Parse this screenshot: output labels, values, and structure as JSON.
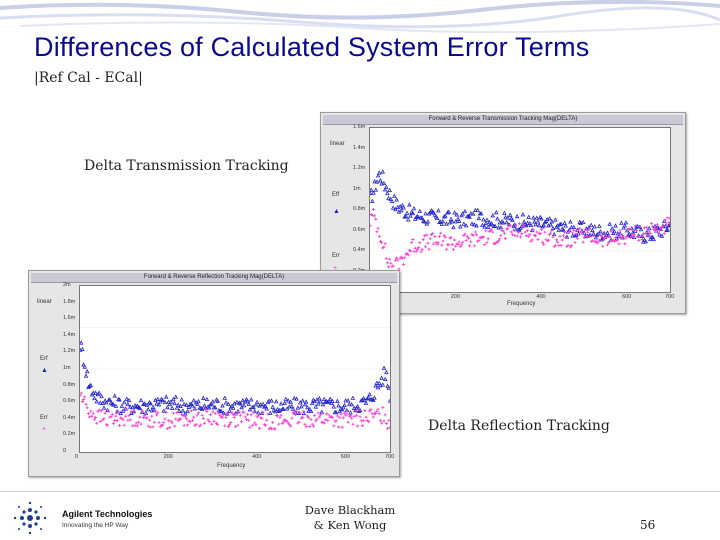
{
  "slide": {
    "title": "Differences of Calculated System Error Terms",
    "subtitle": "|Ref Cal - ECal|",
    "caption_transmission": "Delta Transmission Tracking",
    "caption_reflection": "Delta Reflection Tracking",
    "author_line1": "Dave Blackham",
    "author_line2": "& Ken Wong",
    "page_number": "56",
    "logo_name": "Agilent Technologies",
    "logo_tagline": "Innovating the HP Way",
    "colors": {
      "title": "#0a0a8c",
      "series_forward": "#2020d0",
      "series_reverse": "#ff33cc"
    }
  },
  "chart_data": [
    {
      "type": "scatter",
      "window_title": "Forward & Reverse Transmission Tracking Mag(DELTA)",
      "scale_label": "linear",
      "xlabel": "Frequency",
      "x_ticks": [
        "0",
        "200",
        "400",
        "600",
        "700"
      ],
      "y_ticks": [
        "1.6m",
        "1.4m",
        "1.2m",
        "1m",
        "0.8m",
        "0.6m",
        "0.4m",
        "0.2m",
        "0"
      ],
      "xlim": [
        0,
        700
      ],
      "ylim": [
        0,
        1.6
      ],
      "series": [
        {
          "name": "Eff",
          "marker": "triangle",
          "x": [
            0,
            10,
            20,
            30,
            40,
            60,
            80,
            100,
            150,
            200,
            250,
            300,
            350,
            400,
            450,
            500,
            550,
            600,
            650,
            700
          ],
          "y": [
            0.9,
            1.0,
            1.15,
            1.1,
            1.0,
            0.85,
            0.8,
            0.75,
            0.72,
            0.7,
            0.72,
            0.7,
            0.68,
            0.66,
            0.62,
            0.6,
            0.58,
            0.6,
            0.55,
            0.65
          ]
        },
        {
          "name": "Err",
          "marker": "cross",
          "x": [
            0,
            10,
            20,
            30,
            40,
            60,
            80,
            100,
            150,
            200,
            250,
            300,
            350,
            400,
            450,
            500,
            550,
            600,
            650,
            700
          ],
          "y": [
            0.7,
            0.75,
            0.6,
            0.5,
            0.3,
            0.25,
            0.35,
            0.45,
            0.5,
            0.48,
            0.52,
            0.55,
            0.6,
            0.55,
            0.5,
            0.55,
            0.5,
            0.55,
            0.6,
            0.65
          ]
        }
      ]
    },
    {
      "type": "scatter",
      "window_title": "Forward & Reverse Reflection Tracking Mag(DELTA)",
      "scale_label": "linear",
      "xlabel": "Frequency",
      "x_ticks": [
        "0",
        "200",
        "400",
        "600",
        "700"
      ],
      "y_ticks": [
        "2m",
        "1.8m",
        "1.6m",
        "1.4m",
        "1.2m",
        "1m",
        "0.8m",
        "0.6m",
        "0.4m",
        "0.2m",
        "0"
      ],
      "xlim": [
        0,
        700
      ],
      "ylim": [
        0,
        2
      ],
      "series": [
        {
          "name": "Erf",
          "marker": "triangle",
          "x": [
            0,
            10,
            20,
            40,
            60,
            80,
            100,
            150,
            200,
            250,
            300,
            350,
            400,
            450,
            500,
            550,
            600,
            650,
            690,
            700
          ],
          "y": [
            1.3,
            1.1,
            0.8,
            0.65,
            0.6,
            0.58,
            0.55,
            0.56,
            0.58,
            0.55,
            0.57,
            0.55,
            0.56,
            0.54,
            0.55,
            0.56,
            0.55,
            0.6,
            0.95,
            0.7
          ]
        },
        {
          "name": "Err",
          "marker": "cross",
          "x": [
            0,
            10,
            20,
            40,
            60,
            80,
            100,
            150,
            200,
            250,
            300,
            350,
            400,
            450,
            500,
            550,
            600,
            650,
            690,
            700
          ],
          "y": [
            0.7,
            0.6,
            0.5,
            0.42,
            0.4,
            0.4,
            0.42,
            0.4,
            0.38,
            0.4,
            0.42,
            0.4,
            0.38,
            0.37,
            0.4,
            0.4,
            0.38,
            0.42,
            0.45,
            0.3
          ]
        }
      ]
    }
  ]
}
